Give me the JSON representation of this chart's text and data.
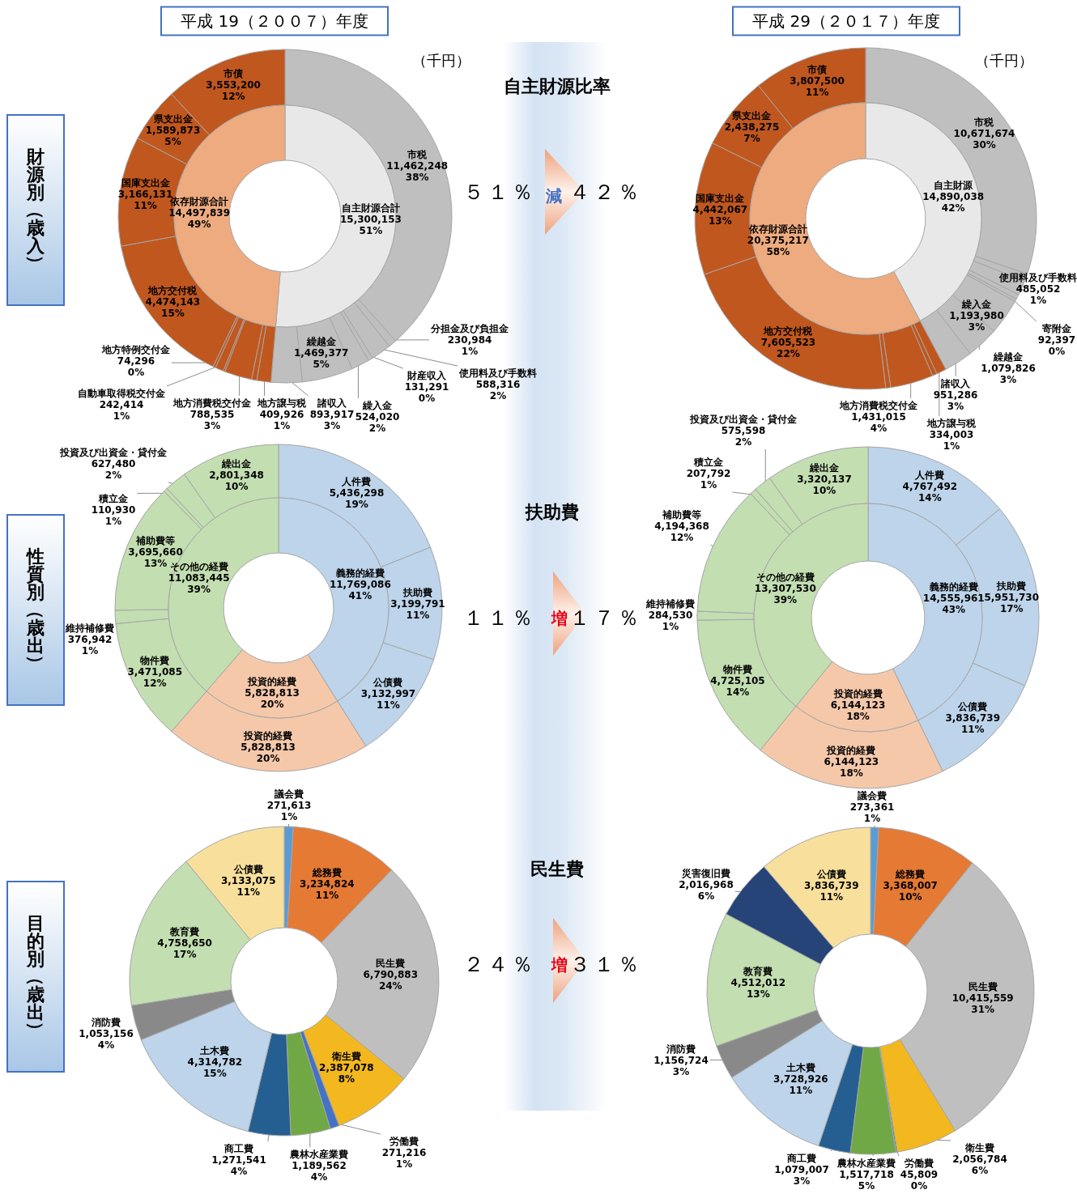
{
  "chart_data": [
    {
      "type": "donut",
      "title": "平成 19（２００７）年度",
      "subtitle": "（千円）",
      "ylabel": "財源別（歳入）",
      "categories": [
        "市税",
        "分担金及び負担金",
        "使用料及び手数料",
        "財産収入",
        "繰入金",
        "繰越金",
        "諸収入",
        "地方譲与税",
        null,
        "地方消費税交付金",
        null,
        "自動車取得税交付金",
        "地方特例交付金",
        "地方交付税",
        "国庫支出金",
        "県支出金",
        "市債"
      ],
      "values": [
        11462248,
        230984,
        588316,
        131291,
        524020,
        1469377,
        893917,
        409926,
        150000,
        788535,
        50000,
        242414,
        74296,
        4474143,
        3166131,
        1589873,
        3553200
      ],
      "colors": [
        "#bfbfbf",
        "#bfbfbf",
        "#bfbfbf",
        "#bfbfbf",
        "#bfbfbf",
        "#bfbfbf",
        "#bfbfbf",
        "#c0571e",
        "#c0571e",
        "#c0571e",
        "#c0571e",
        "#c0571e",
        "#c0571e",
        "#c0571e",
        "#c0571e",
        "#c0571e",
        "#c0571e"
      ],
      "value_labels": [
        "11,462,248\n38%",
        "230,984\n1%",
        "588,316\n2%",
        "131,291\n0%",
        "524,020\n2%",
        "1,469,377\n5%",
        "893,917\n3%",
        "409,926\n1%",
        null,
        "788,535\n3%",
        null,
        "242,414\n1%",
        "74,296\n0%",
        "4,474,143\n15%",
        "3,166,131\n11%",
        "1,589,873\n5%",
        "3,553,200\n12%"
      ]
    },
    {
      "type": "donut",
      "categories": [
        "自主財源合計",
        "依存財源合計"
      ],
      "values": [
        15300153,
        14497839
      ],
      "colors": [
        "#e8e8e8",
        "#eeab7f"
      ],
      "value_labels": [
        "15,300,153\n51%",
        "14,497,839\n49%"
      ]
    },
    {
      "type": "other",
      "title": "自主財源比率",
      "annotations": [
        "５１％",
        "減",
        "４２％"
      ]
    },
    {
      "type": "donut",
      "title": "平成 29（２０１７）年度",
      "subtitle": "（千円）",
      "categories": [
        "市税",
        null,
        "使用料及び手数料",
        null,
        "寄附金",
        "繰入金",
        "繰越金",
        "諸収入",
        "地方譲与税",
        null,
        "地方消費税交付金",
        null,
        "地方交付税",
        "国庫支出金",
        "県支出金",
        "市債"
      ],
      "values": [
        10671674,
        250000,
        485052,
        166000,
        92397,
        1193980,
        1079826,
        951286,
        334003,
        150000,
        1431015,
        167000,
        7605523,
        4442067,
        2438275,
        3807500
      ],
      "colors": [
        "#bfbfbf",
        "#bfbfbf",
        "#bfbfbf",
        "#bfbfbf",
        "#bfbfbf",
        "#bfbfbf",
        "#bfbfbf",
        "#bfbfbf",
        "#c0571e",
        "#c0571e",
        "#c0571e",
        "#c0571e",
        "#c0571e",
        "#c0571e",
        "#c0571e",
        "#c0571e"
      ],
      "value_labels": [
        "10,671,674\n30%",
        null,
        "485,052\n1%",
        null,
        "92,397\n0%",
        "1,193,980\n3%",
        "1,079,826\n3%",
        "951,286\n3%",
        "334,003\n1%",
        null,
        "1,431,015\n4%",
        null,
        "7,605,523\n22%",
        "4,442,067\n13%",
        "2,438,275\n7%",
        "3,807,500\n11%"
      ]
    },
    {
      "type": "donut",
      "categories": [
        "自主財源",
        "依存財源合計"
      ],
      "values": [
        14890038,
        20375217
      ],
      "colors": [
        "#e8e8e8",
        "#eeab7f"
      ],
      "value_labels": [
        "14,890,038\n42%",
        "20,375,217\n58%"
      ]
    },
    {
      "type": "donut",
      "ylabel": "性質別（歳出）",
      "categories": [
        "人件費",
        "扶助費",
        "公債費",
        "投資的経費",
        "物件費",
        "維持補修費",
        "補助費等",
        "積立金",
        "投資及び出資金・貸付金",
        "繰出金"
      ],
      "values": [
        5436298,
        3199791,
        3132997,
        5828813,
        3471085,
        376942,
        3695660,
        110930,
        627480,
        2801348
      ],
      "colors": [
        "#bdd4ea",
        "#bdd4ea",
        "#bdd4ea",
        "#f5c8aa",
        "#c3deb1",
        "#c3deb1",
        "#c3deb1",
        "#c3deb1",
        "#c3deb1",
        "#c3deb1"
      ],
      "value_labels": [
        "5,436,298\n19%",
        "3,199,791\n11%",
        "3,132,997\n11%",
        "5,828,813\n20%",
        "3,471,085\n12%",
        "376,942\n1%",
        "3,695,660\n13%",
        "110,930\n1%",
        "627,480\n2%",
        "2,801,348\n10%"
      ]
    },
    {
      "type": "donut",
      "categories": [
        "義務的経費",
        "投資的経費",
        "その他の経費"
      ],
      "values": [
        11769086,
        5828813,
        11083445
      ],
      "colors": [
        "#bdd4ea",
        "#f5c8aa",
        "#c3deb1"
      ],
      "value_labels": [
        "11,769,086\n41%",
        "5,828,813\n20%",
        "11,083,445\n39%"
      ]
    },
    {
      "type": "other",
      "title": "扶助費",
      "annotations": [
        "１１％",
        "増",
        "１７％"
      ]
    },
    {
      "type": "donut",
      "categories": [
        "人件費",
        "扶助費",
        "公債費",
        "投資的経費",
        "物件費",
        "維持補修費",
        "補助費等",
        "積立金",
        "投資及び出資金・貸付金",
        "繰出金"
      ],
      "values": [
        4767492,
        5951730,
        3836739,
        6144123,
        4725105,
        284530,
        4194368,
        207792,
        575598,
        3320137
      ],
      "colors": [
        "#bdd4ea",
        "#bdd4ea",
        "#bdd4ea",
        "#f5c8aa",
        "#c3deb1",
        "#c3deb1",
        "#c3deb1",
        "#c3deb1",
        "#c3deb1",
        "#c3deb1"
      ],
      "value_labels": [
        "4,767,492\n14%",
        "5,951,730\n17%",
        "3,836,739\n11%",
        "6,144,123\n18%",
        "4,725,105\n14%",
        "284,530\n1%",
        "4,194,368\n12%",
        "207,792\n1%",
        "575,598\n2%",
        "3,320,137\n10%"
      ]
    },
    {
      "type": "donut",
      "categories": [
        "義務的経費",
        "投資的経費",
        "その他の経費"
      ],
      "values": [
        14555961,
        6144123,
        13307530
      ],
      "colors": [
        "#bdd4ea",
        "#f5c8aa",
        "#c3deb1"
      ],
      "value_labels": [
        "14,555,961\n43%",
        "6,144,123\n18%",
        "13,307,530\n39%"
      ]
    },
    {
      "type": "donut",
      "ylabel": "目的別（歳出）",
      "categories": [
        "議会費",
        "総務費",
        "民生費",
        "衛生費",
        "労働費",
        "農林水産業費",
        "商工費",
        "土木費",
        "消防費",
        "教育費",
        "公債費"
      ],
      "values": [
        271613,
        3234824,
        6790883,
        2387078,
        271216,
        1189562,
        1271541,
        4314782,
        1053156,
        4758650,
        3133075
      ],
      "colors": [
        "#5b9bd5",
        "#e57a34",
        "#bfbfbf",
        "#f3b81f",
        "#4472c4",
        "#70a845",
        "#255e91",
        "#bdd4ea",
        "#898989",
        "#c3deb1",
        "#f8e09c"
      ],
      "value_labels": [
        "271,613\n1%",
        "3,234,824\n11%",
        "6,790,883\n24%",
        "2,387,078\n8%",
        "271,216\n1%",
        "1,189,562\n4%",
        "1,271,541\n4%",
        "4,314,782\n15%",
        "1,053,156\n4%",
        "4,758,650\n17%",
        "3,133,075\n11%"
      ]
    },
    {
      "type": "other",
      "title": "民生費",
      "annotations": [
        "２４％",
        "増",
        "３１％"
      ]
    },
    {
      "type": "donut",
      "categories": [
        "議会費",
        "総務費",
        "民生費",
        "衛生費",
        "労働費",
        "農林水産業費",
        "商工費",
        "土木費",
        "消防費",
        "教育費",
        "災害復旧費",
        "公債費"
      ],
      "values": [
        273361,
        3368007,
        10415559,
        2056784,
        45809,
        1517718,
        1079007,
        3728926,
        1156724,
        4512012,
        2016968,
        3836739
      ],
      "colors": [
        "#5b9bd5",
        "#e57a34",
        "#bfbfbf",
        "#f3b81f",
        "#4472c4",
        "#70a845",
        "#255e91",
        "#bdd4ea",
        "#898989",
        "#c3deb1",
        "#264478",
        "#f8e09c"
      ],
      "value_labels": [
        "273,361\n1%",
        "3,368,007\n10%",
        "10,415,559\n31%",
        "2,056,784\n6%",
        "45,809\n0%",
        "1,517,718\n5%",
        "1,079,007\n3%",
        "3,728,926\n11%",
        "1,156,724\n3%",
        "4,512,012\n13%",
        "2,016,968\n6%",
        "3,836,739\n11%"
      ]
    }
  ]
}
